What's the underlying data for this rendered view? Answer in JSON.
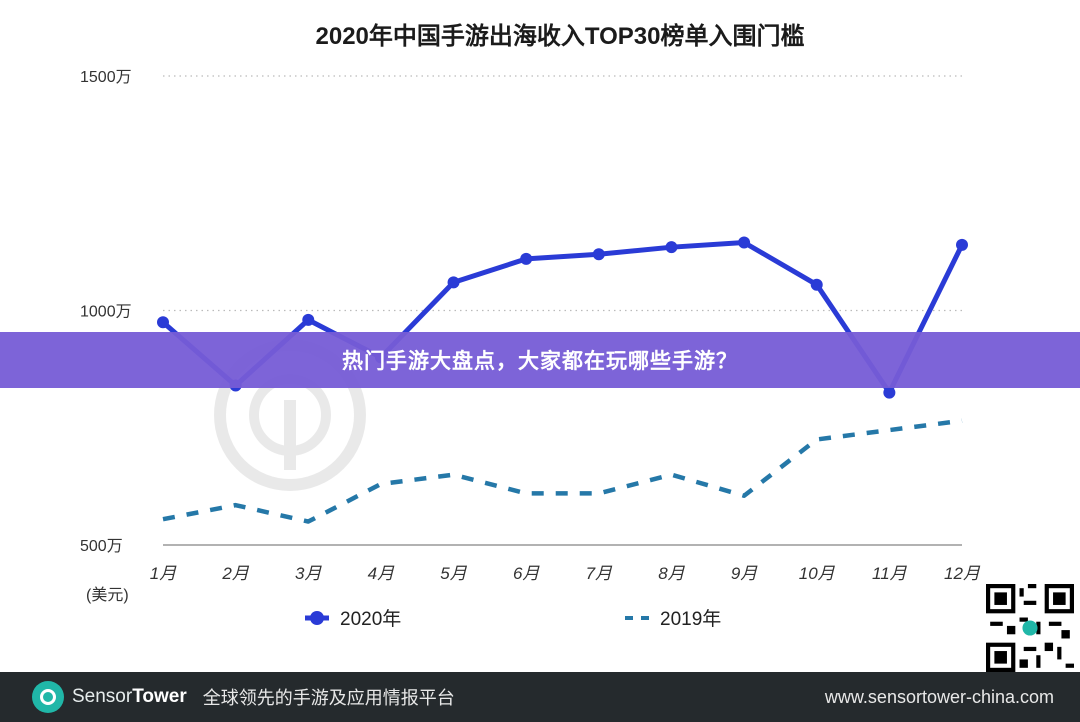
{
  "chart_data": {
    "type": "line",
    "title": "2020年中国手游出海收入TOP30榜单入围门槛",
    "ylabel": "(美元)",
    "xlabel": "",
    "categories": [
      "1月",
      "2月",
      "3月",
      "4月",
      "5月",
      "6月",
      "7月",
      "8月",
      "9月",
      "10月",
      "11月",
      "12月"
    ],
    "y_ticks": [
      "500万",
      "1000万",
      "1500万"
    ],
    "y_tick_values": [
      500,
      1000,
      1500
    ],
    "ylim": [
      500,
      1500
    ],
    "grid": true,
    "legend_position": "bottom",
    "series": [
      {
        "name": "2020年",
        "style": "solid-marker",
        "color": "#2a3bd6",
        "values": [
          975,
          840,
          980,
          900,
          1060,
          1110,
          1120,
          1135,
          1145,
          1055,
          825,
          1140
        ]
      },
      {
        "name": "2019年",
        "style": "dashed",
        "color": "#2578a8",
        "values": [
          555,
          585,
          550,
          630,
          650,
          610,
          610,
          650,
          605,
          725,
          745,
          765
        ]
      }
    ]
  },
  "banner": {
    "text": "热门手游大盘点，大家都在玩哪些手游？"
  },
  "footer": {
    "brand_a": "Sensor",
    "brand_b": "Tower",
    "slogan": "全球领先的手游及应用情报平台",
    "url": "www.sensortower-china.com"
  },
  "colors": {
    "accent_2020": "#2a3bd6",
    "accent_2019": "#2578a8",
    "banner": "#765cd6",
    "footer": "#252a2d"
  }
}
